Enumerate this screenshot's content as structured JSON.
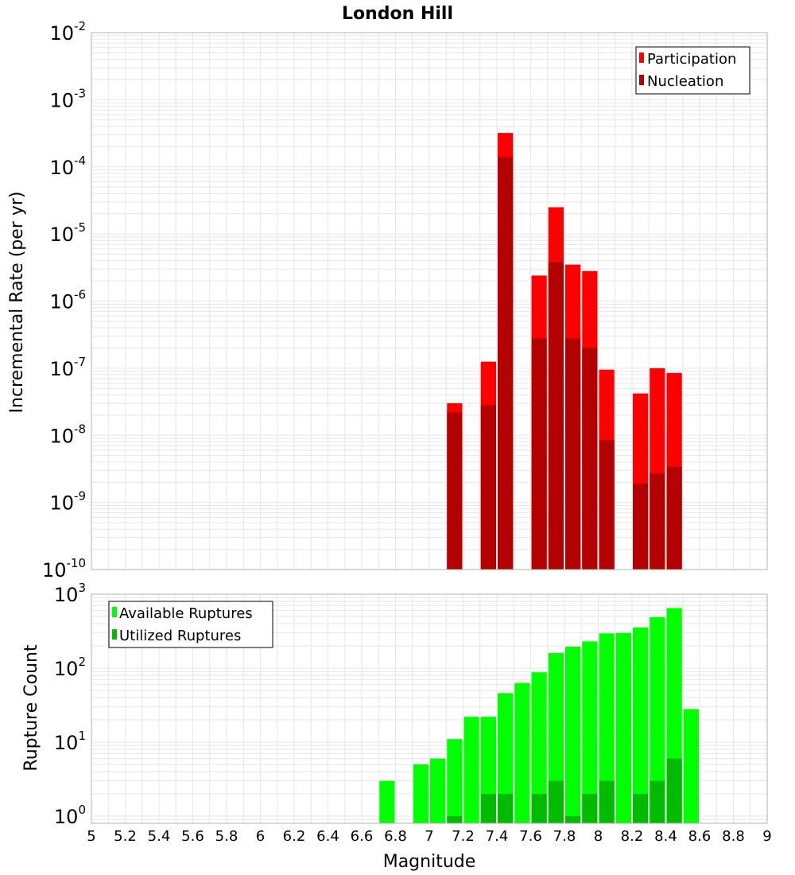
{
  "chart_data": [
    {
      "type": "bar",
      "title": "London Hill",
      "xlabel": "",
      "ylabel": "Incremental Rate (per yr)",
      "yscale": "log",
      "ylim": [
        1e-10,
        0.01
      ],
      "xlim": [
        5,
        9
      ],
      "grid": true,
      "legend_position": "top-right",
      "series": [
        {
          "name": "Participation",
          "color": "#ff0000",
          "x": [
            7.15,
            7.35,
            7.45,
            7.65,
            7.75,
            7.85,
            7.95,
            8.05,
            8.25,
            8.35,
            8.45
          ],
          "values": [
            3e-08,
            1.25e-07,
            0.00032,
            2.4e-06,
            2.5e-05,
            3.5e-06,
            2.8e-06,
            9.5e-08,
            4.2e-08,
            1e-07,
            8.5e-08
          ]
        },
        {
          "name": "Nucleation",
          "color": "#b30000",
          "x": [
            7.15,
            7.35,
            7.45,
            7.65,
            7.75,
            7.85,
            7.95,
            8.05,
            8.25,
            8.35,
            8.45
          ],
          "values": [
            2.2e-08,
            2.8e-08,
            0.00014,
            2.8e-07,
            3.8e-06,
            2.8e-07,
            2e-07,
            8.5e-09,
            1.9e-09,
            2.7e-09,
            3.4e-09
          ]
        }
      ]
    },
    {
      "type": "bar",
      "title": "",
      "xlabel": "Magnitude",
      "ylabel": "Rupture Count",
      "yscale": "log",
      "ylim": [
        0.8,
        1000
      ],
      "xlim": [
        5,
        9
      ],
      "xticks": [
        "5",
        "5.2",
        "5.4",
        "5.6",
        "5.8",
        "6",
        "6.2",
        "6.4",
        "6.6",
        "6.8",
        "7",
        "7.2",
        "7.4",
        "7.6",
        "7.8",
        "8",
        "8.2",
        "8.4",
        "8.6",
        "8.8",
        "9"
      ],
      "grid": true,
      "legend_position": "top-left",
      "series": [
        {
          "name": "Available Ruptures",
          "color": "#00ff00",
          "x": [
            6.75,
            6.95,
            7.05,
            7.15,
            7.25,
            7.35,
            7.45,
            7.55,
            7.65,
            7.75,
            7.85,
            7.95,
            8.05,
            8.15,
            8.25,
            8.35,
            8.45,
            8.55
          ],
          "values": [
            3,
            5,
            6,
            11,
            22,
            22,
            46,
            63,
            88,
            160,
            195,
            230,
            295,
            300,
            355,
            490,
            650,
            28
          ]
        },
        {
          "name": "Utilized Ruptures",
          "color": "#00bb00",
          "x": [
            7.15,
            7.35,
            7.45,
            7.65,
            7.75,
            7.85,
            7.95,
            8.05,
            8.25,
            8.35,
            8.45
          ],
          "values": [
            1,
            2,
            2,
            2,
            3,
            1,
            2,
            3,
            2,
            3,
            6
          ]
        }
      ]
    }
  ]
}
